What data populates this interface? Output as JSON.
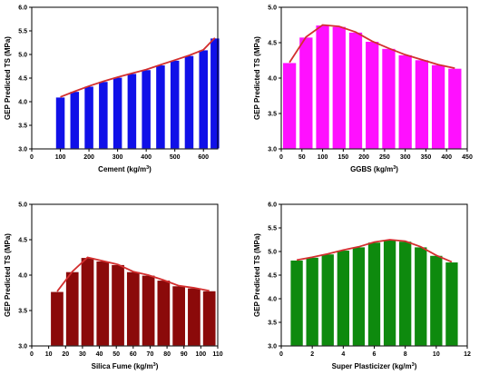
{
  "chart_data": [
    {
      "type": "bar",
      "xlabel": "Cement (kg/m",
      "xlabel_sup": "3",
      "xlabel_end": ")",
      "ylabel": "GEP Predicted TS (MPa)",
      "xlim": [
        0,
        650
      ],
      "ylim": [
        3.0,
        6.0
      ],
      "xticks": [
        "0",
        "100",
        "200",
        "300",
        "400",
        "500",
        "600"
      ],
      "yticks": [
        "3.0",
        "3.5",
        "4.0",
        "4.5",
        "5.0",
        "5.5",
        "6.0"
      ],
      "bar_color": "#1010e8",
      "line_color": "#d32f2f",
      "x": [
        100,
        150,
        200,
        250,
        300,
        350,
        400,
        450,
        500,
        550,
        600,
        640
      ],
      "values": [
        4.1,
        4.22,
        4.33,
        4.43,
        4.52,
        4.6,
        4.68,
        4.78,
        4.88,
        4.98,
        5.1,
        5.35
      ],
      "bar_width": 34
    },
    {
      "type": "bar",
      "xlabel": "GGBS (kg/m",
      "xlabel_sup": "3",
      "xlabel_end": ")",
      "ylabel": "GEP Predicted TS (MPa)",
      "xlim": [
        0,
        450
      ],
      "ylim": [
        3.0,
        5.0
      ],
      "xticks": [
        "0",
        "50",
        "100",
        "150",
        "200",
        "250",
        "300",
        "350",
        "400",
        "450"
      ],
      "yticks": [
        "3.0",
        "3.5",
        "4.0",
        "4.5",
        "5.0"
      ],
      "bar_color": "#ff10ff",
      "line_color": "#d32f2f",
      "x": [
        20,
        60,
        100,
        140,
        180,
        220,
        260,
        300,
        340,
        380,
        420
      ],
      "values": [
        4.22,
        4.58,
        4.75,
        4.73,
        4.65,
        4.52,
        4.42,
        4.33,
        4.26,
        4.19,
        4.14
      ],
      "bar_width": 34
    },
    {
      "type": "bar",
      "xlabel": "Silica Fume (kg/m",
      "xlabel_sup": "3",
      "xlabel_end": ")",
      "ylabel": "GEP Predicted TS (MPa)",
      "xlim": [
        0,
        110
      ],
      "ylim": [
        3.0,
        5.0
      ],
      "xticks": [
        "0",
        "10",
        "20",
        "30",
        "40",
        "50",
        "60",
        "70",
        "80",
        "90",
        "100",
        "110"
      ],
      "yticks": [
        "3.0",
        "3.5",
        "4.0",
        "4.5",
        "5.0"
      ],
      "bar_color": "#8b0a0a",
      "line_color": "#d32f2f",
      "x": [
        15,
        24,
        33,
        42,
        51,
        60,
        69,
        78,
        87,
        96,
        105
      ],
      "values": [
        3.77,
        4.05,
        4.25,
        4.2,
        4.15,
        4.05,
        4.0,
        3.93,
        3.85,
        3.82,
        3.78
      ],
      "bar_width": 8
    },
    {
      "type": "bar",
      "xlabel": "Super Plasticizer (kg/m",
      "xlabel_sup": "3",
      "xlabel_end": ")",
      "ylabel": "GEP Predicted TS (MPa)",
      "xlim": [
        0,
        12
      ],
      "ylim": [
        3.0,
        6.0
      ],
      "xticks": [
        "0",
        "2",
        "4",
        "6",
        "8",
        "10",
        "12"
      ],
      "yticks": [
        "3.0",
        "3.5",
        "4.0",
        "4.5",
        "5.0",
        "5.5",
        "6.0"
      ],
      "bar_color": "#0e8a0e",
      "line_color": "#d32f2f",
      "x": [
        1,
        2,
        3,
        4,
        5,
        6,
        7,
        8,
        9,
        10,
        11
      ],
      "values": [
        4.82,
        4.88,
        4.95,
        5.03,
        5.1,
        5.2,
        5.25,
        5.22,
        5.1,
        4.92,
        4.78
      ],
      "bar_width": 0.85
    }
  ]
}
